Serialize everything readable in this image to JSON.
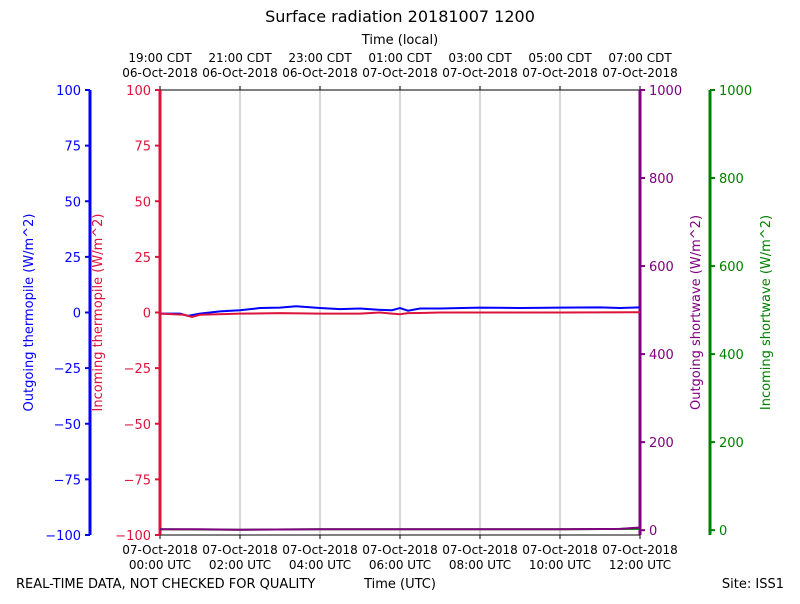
{
  "chart_data": {
    "type": "line",
    "title": "Surface radiation 20181007 1200",
    "top_xlabel": "Time (local)",
    "xlabel": "Time (UTC)",
    "footer_left": "REAL-TIME DATA, NOT CHECKED FOR QUALITY",
    "footer_right": "Site: ISS1",
    "x_range_hours_utc": [
      0,
      12
    ],
    "grid": true,
    "bottom_ticks": [
      {
        "h": 0,
        "l1": "07-Oct-2018",
        "l2": "00:00 UTC"
      },
      {
        "h": 2,
        "l1": "07-Oct-2018",
        "l2": "02:00 UTC"
      },
      {
        "h": 4,
        "l1": "07-Oct-2018",
        "l2": "04:00 UTC"
      },
      {
        "h": 6,
        "l1": "07-Oct-2018",
        "l2": "06:00 UTC"
      },
      {
        "h": 8,
        "l1": "07-Oct-2018",
        "l2": "08:00 UTC"
      },
      {
        "h": 10,
        "l1": "07-Oct-2018",
        "l2": "10:00 UTC"
      },
      {
        "h": 12,
        "l1": "07-Oct-2018",
        "l2": "12:00 UTC"
      }
    ],
    "top_ticks": [
      {
        "h": 0,
        "l1": "19:00 CDT",
        "l2": "06-Oct-2018"
      },
      {
        "h": 2,
        "l1": "21:00 CDT",
        "l2": "06-Oct-2018"
      },
      {
        "h": 4,
        "l1": "23:00 CDT",
        "l2": "06-Oct-2018"
      },
      {
        "h": 6,
        "l1": "01:00 CDT",
        "l2": "07-Oct-2018"
      },
      {
        "h": 8,
        "l1": "03:00 CDT",
        "l2": "07-Oct-2018"
      },
      {
        "h": 10,
        "l1": "05:00 CDT",
        "l2": "07-Oct-2018"
      },
      {
        "h": 12,
        "l1": "07:00 CDT",
        "l2": "07-Oct-2018"
      }
    ],
    "axes": [
      {
        "id": "out_thermo",
        "label": "Outgoing thermopile (W/m^2)",
        "color": "#0000ff",
        "ylim": [
          -100,
          100
        ],
        "ticks": [
          100,
          75,
          50,
          25,
          0,
          -25,
          -50,
          -75,
          -100
        ],
        "tick_labels": [
          "100",
          "75",
          "50",
          "25",
          "0",
          "−25",
          "−50",
          "−75",
          "−100"
        ]
      },
      {
        "id": "in_thermo",
        "label": "Incoming thermopile (W/m^2)",
        "color": "#dc143c",
        "ylim": [
          -100,
          100
        ],
        "ticks": [
          100,
          75,
          50,
          25,
          0,
          -25,
          -50,
          -75,
          -100
        ],
        "tick_labels": [
          "100",
          "75",
          "50",
          "25",
          "0",
          "−25",
          "−50",
          "−75",
          "−100"
        ]
      },
      {
        "id": "out_sw",
        "label": "Outgoing shortwave (W/m^2)",
        "color": "#800080",
        "ylim": [
          -11,
          1000
        ],
        "ticks": [
          0,
          200,
          400,
          600,
          800,
          1000
        ],
        "tick_labels": [
          "0",
          "200",
          "400",
          "600",
          "800",
          "1000"
        ]
      },
      {
        "id": "in_sw",
        "label": "Incoming shortwave (W/m^2)",
        "color": "#008000",
        "ylim": [
          -11,
          1000
        ],
        "ticks": [
          0,
          200,
          400,
          600,
          800,
          1000
        ],
        "tick_labels": [
          "0",
          "200",
          "400",
          "600",
          "800",
          "1000"
        ]
      }
    ],
    "series": [
      {
        "name": "Outgoing thermopile",
        "axis": "out_thermo",
        "color": "#0000ff",
        "x": [
          0,
          0.5,
          0.7,
          1,
          1.5,
          2,
          2.5,
          3,
          3.4,
          4,
          4.5,
          5,
          5.5,
          5.8,
          6,
          6.2,
          6.5,
          7,
          8,
          9,
          10,
          11,
          11.5,
          12
        ],
        "y": [
          -0.5,
          -0.5,
          -1.5,
          -0.5,
          0.5,
          1,
          2,
          2.2,
          2.8,
          2,
          1.5,
          1.8,
          1.2,
          1,
          2,
          0.8,
          1.8,
          1.8,
          2.2,
          2,
          2.2,
          2.3,
          2,
          2.3
        ]
      },
      {
        "name": "Incoming thermopile",
        "axis": "in_thermo",
        "color": "#dc143c",
        "x": [
          0,
          0.6,
          0.8,
          1,
          2,
          3,
          4,
          5,
          5.5,
          5.8,
          6,
          6.2,
          6.5,
          7,
          8,
          10,
          12
        ],
        "y": [
          -0.5,
          -1,
          -2,
          -1,
          -0.5,
          -0.3,
          -0.5,
          -0.5,
          0,
          -0.5,
          -0.8,
          -0.3,
          -0.2,
          0,
          0,
          0,
          0.1
        ]
      },
      {
        "name": "Incoming shortwave",
        "axis": "in_sw",
        "color": "#008000",
        "x": [
          0,
          2,
          4,
          6,
          8,
          10,
          12
        ],
        "y": [
          2,
          1,
          2,
          2,
          2,
          2,
          3
        ]
      },
      {
        "name": "Outgoing shortwave",
        "axis": "out_sw",
        "color": "#800080",
        "x": [
          0,
          1,
          2,
          4,
          6,
          8,
          10,
          11.5,
          12
        ],
        "y": [
          2,
          2,
          1,
          2,
          2,
          2,
          2,
          3,
          6
        ]
      }
    ]
  }
}
